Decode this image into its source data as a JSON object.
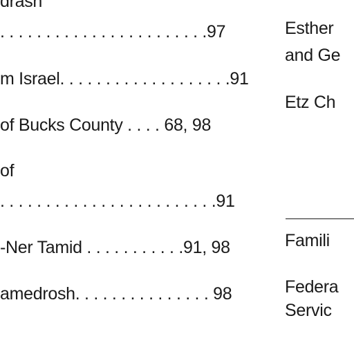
{
  "left_column": {
    "line0": "drash",
    "line1": ". . . . . . . . . . . . . . . . . . . . . . .97",
    "line2": "m Israel. . . . . . . . . . . . . . . . . . .91",
    "line3": "of Bucks County . . . . 68, 98",
    "line4": "of",
    "line5": ". . . . . . . . . . . . . . . . . . . . . . . .91",
    "line6": "-Ner Tamid . . . . . . . . . . .91, 98",
    "line7": "amedrosh. . . . . . . . . . . . . . . 98"
  },
  "right_column": {
    "line0": "Esther",
    "line1": "and Ge",
    "line2": "Etz Ch",
    "line3": "Famili",
    "line4": "Federa",
    "line5": "Servic"
  }
}
